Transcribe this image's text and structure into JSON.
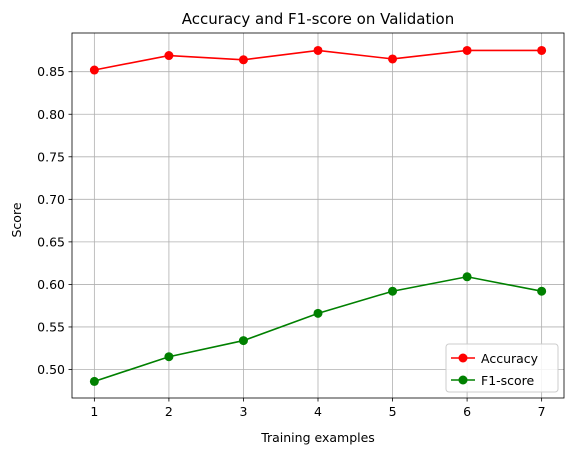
{
  "chart_data": {
    "type": "line",
    "title": "Accuracy and F1-score on Validation",
    "xlabel": "Training examples",
    "ylabel": "Score",
    "x": [
      1,
      2,
      3,
      4,
      5,
      6,
      7
    ],
    "xlim": [
      0.7,
      7.3
    ],
    "ylim": [
      0.4665,
      0.8955
    ],
    "xticks": [
      1,
      2,
      3,
      4,
      5,
      6,
      7
    ],
    "yticks": [
      0.5,
      0.55,
      0.6,
      0.65,
      0.7,
      0.75,
      0.8,
      0.85
    ],
    "ytick_labels": [
      "0.50",
      "0.55",
      "0.60",
      "0.65",
      "0.70",
      "0.75",
      "0.80",
      "0.85"
    ],
    "grid": true,
    "legend_position": "lower-right",
    "series": [
      {
        "name": "Accuracy",
        "color": "#ff0000",
        "marker": "circle",
        "values": [
          0.852,
          0.869,
          0.864,
          0.875,
          0.865,
          0.875,
          0.875
        ]
      },
      {
        "name": "F1-score",
        "color": "#008000",
        "marker": "circle",
        "values": [
          0.486,
          0.515,
          0.534,
          0.566,
          0.592,
          0.609,
          0.592
        ]
      }
    ]
  }
}
